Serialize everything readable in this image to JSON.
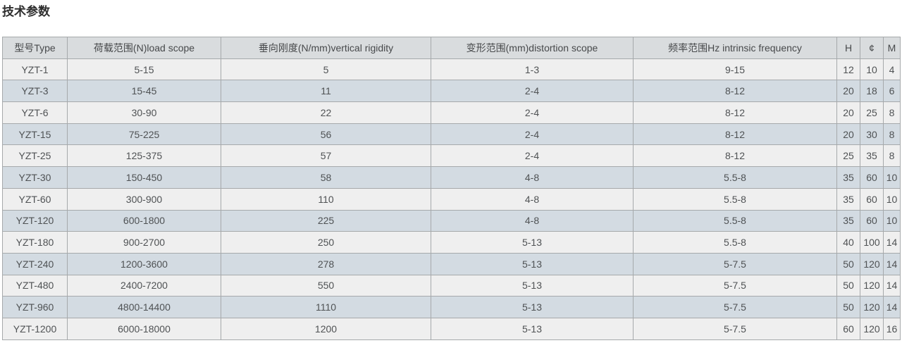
{
  "page": {
    "title": "技术参数"
  },
  "colors": {
    "header_bg": "#d9dcde",
    "row_odd_bg": "#efefef",
    "row_even_bg": "#d3dbe2",
    "border": "#a6a9ab",
    "text": "#4f5254"
  },
  "table": {
    "columns": [
      "型号Type",
      "荷载范围(N)load scope",
      "垂向刚度(N/mm)vertical rigidity",
      "变形范围(mm)distortion scope",
      "频率范围Hz intrinsic frequency",
      "H",
      "¢",
      "M"
    ],
    "rows": [
      [
        "YZT-1",
        "5-15",
        "5",
        "1-3",
        "9-15",
        "12",
        "10",
        "4"
      ],
      [
        "YZT-3",
        "15-45",
        "11",
        "2-4",
        "8-12",
        "20",
        "18",
        "6"
      ],
      [
        "YZT-6",
        "30-90",
        "22",
        "2-4",
        "8-12",
        "20",
        "25",
        "8"
      ],
      [
        "YZT-15",
        "75-225",
        "56",
        "2-4",
        "8-12",
        "20",
        "30",
        "8"
      ],
      [
        "YZT-25",
        "125-375",
        "57",
        "2-4",
        "8-12",
        "25",
        "35",
        "8"
      ],
      [
        "YZT-30",
        "150-450",
        "58",
        "4-8",
        "5.5-8",
        "35",
        "60",
        "10"
      ],
      [
        "YZT-60",
        "300-900",
        "110",
        "4-8",
        "5.5-8",
        "35",
        "60",
        "10"
      ],
      [
        "YZT-120",
        "600-1800",
        "225",
        "4-8",
        "5.5-8",
        "35",
        "60",
        "10"
      ],
      [
        "YZT-180",
        "900-2700",
        "250",
        "5-13",
        "5.5-8",
        "40",
        "100",
        "14"
      ],
      [
        "YZT-240",
        "1200-3600",
        "278",
        "5-13",
        "5-7.5",
        "50",
        "120",
        "14"
      ],
      [
        "YZT-480",
        "2400-7200",
        "550",
        "5-13",
        "5-7.5",
        "50",
        "120",
        "14"
      ],
      [
        "YZT-960",
        "4800-14400",
        "1110",
        "5-13",
        "5-7.5",
        "50",
        "120",
        "14"
      ],
      [
        "YZT-1200",
        "6000-18000",
        "1200",
        "5-13",
        "5-7.5",
        "60",
        "120",
        "16"
      ]
    ]
  }
}
